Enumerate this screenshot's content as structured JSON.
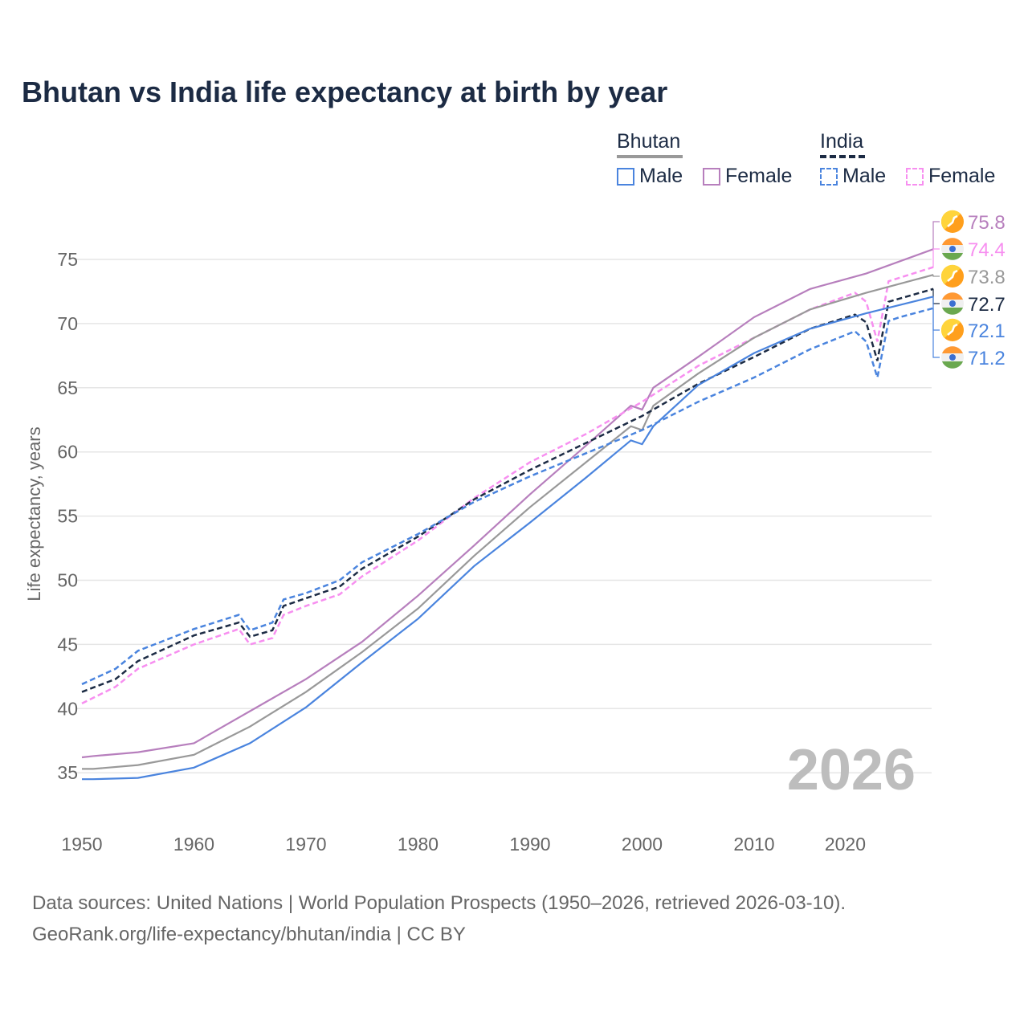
{
  "title": "Bhutan vs India life expectancy at birth by year",
  "legend": {
    "groups": [
      {
        "name": "Bhutan",
        "items": [
          "Male",
          "Female"
        ]
      },
      {
        "name": "India",
        "items": [
          "Male",
          "Female"
        ]
      }
    ]
  },
  "year_label": "2026",
  "footer": {
    "line1": "Data sources: United Nations | World Population Prospects (1950–2026, retrieved 2026-03-10).",
    "line2": "GeoRank.org/life-expectancy/bhutan/india | CC BY"
  },
  "chart_data": {
    "type": "line",
    "title": "Bhutan vs India life expectancy at birth by year",
    "xlabel": "",
    "ylabel": "Life expectancy, years",
    "xlim": [
      1950,
      2026
    ],
    "ylim": [
      33,
      78
    ],
    "xticks": [
      1950,
      1960,
      1970,
      1980,
      1990,
      2000,
      2010,
      2020
    ],
    "yticks": [
      35,
      40,
      45,
      50,
      55,
      60,
      65,
      70,
      75
    ],
    "grid": true,
    "series": [
      {
        "name": "Bhutan Female",
        "color": "#b77fbd",
        "dash": false,
        "end_label": "75.8",
        "flag": "bhutan",
        "x": [
          1950,
          1951,
          1955,
          1960,
          1965,
          1970,
          1975,
          1980,
          1985,
          1990,
          1995,
          1999,
          2000,
          2001,
          2005,
          2010,
          2015,
          2020,
          2026
        ],
        "y": [
          36.2,
          36.3,
          36.6,
          37.3,
          39.8,
          42.3,
          45.2,
          48.8,
          52.7,
          56.7,
          60.5,
          63.6,
          63.3,
          65.0,
          67.4,
          70.5,
          72.7,
          73.9,
          75.8
        ]
      },
      {
        "name": "India Female",
        "color": "#f78ff0",
        "dash": true,
        "end_label": "74.4",
        "flag": "india",
        "x": [
          1950,
          1953,
          1955,
          1960,
          1964,
          1965,
          1967,
          1968,
          1970,
          1973,
          1975,
          1980,
          1985,
          1990,
          1995,
          2000,
          2005,
          2010,
          2015,
          2019,
          2020,
          2021,
          2022,
          2026
        ],
        "y": [
          40.4,
          41.7,
          43.1,
          45.0,
          46.2,
          45.0,
          45.5,
          47.3,
          48.0,
          48.9,
          50.3,
          53.1,
          56.4,
          59.2,
          61.4,
          63.9,
          66.7,
          68.9,
          71.1,
          72.4,
          71.7,
          68.6,
          73.3,
          74.4
        ]
      },
      {
        "name": "Bhutan",
        "color": "#999999",
        "dash": false,
        "end_label": "73.8",
        "flag": "bhutan",
        "x": [
          1950,
          1951,
          1955,
          1960,
          1965,
          1970,
          1975,
          1980,
          1985,
          1990,
          1995,
          1999,
          2000,
          2001,
          2005,
          2010,
          2015,
          2020,
          2026
        ],
        "y": [
          35.3,
          35.3,
          35.6,
          36.4,
          38.6,
          41.3,
          44.4,
          47.8,
          51.9,
          55.7,
          59.2,
          62.0,
          61.7,
          63.6,
          66.1,
          68.9,
          71.1,
          72.4,
          73.8
        ]
      },
      {
        "name": "India",
        "color": "#1c2b44",
        "dash": true,
        "end_label": "72.7",
        "flag": "india",
        "x": [
          1950,
          1953,
          1955,
          1960,
          1964,
          1965,
          1967,
          1968,
          1970,
          1973,
          1975,
          1980,
          1985,
          1990,
          1995,
          2000,
          2005,
          2010,
          2015,
          2019,
          2020,
          2021,
          2022,
          2026
        ],
        "y": [
          41.3,
          42.3,
          43.7,
          45.7,
          46.7,
          45.6,
          46.1,
          48.0,
          48.6,
          49.5,
          50.9,
          53.4,
          56.3,
          58.6,
          60.7,
          62.8,
          65.3,
          67.4,
          69.6,
          70.7,
          70.1,
          67.1,
          71.7,
          72.7
        ]
      },
      {
        "name": "Bhutan Male",
        "color": "#4a84de",
        "dash": false,
        "end_label": "72.1",
        "flag": "bhutan",
        "x": [
          1950,
          1951,
          1955,
          1960,
          1965,
          1970,
          1975,
          1980,
          1985,
          1990,
          1995,
          1999,
          2000,
          2001,
          2005,
          2010,
          2015,
          2020,
          2026
        ],
        "y": [
          34.5,
          34.5,
          34.6,
          35.4,
          37.3,
          40.1,
          43.6,
          47.0,
          51.1,
          54.5,
          58.0,
          60.9,
          60.6,
          62.0,
          65.2,
          67.7,
          69.6,
          70.8,
          72.1
        ]
      },
      {
        "name": "India Male",
        "color": "#4a84de",
        "dash": true,
        "end_label": "71.2",
        "flag": "india",
        "x": [
          1950,
          1953,
          1955,
          1960,
          1964,
          1965,
          1967,
          1968,
          1970,
          1973,
          1975,
          1980,
          1985,
          1990,
          1995,
          2000,
          2005,
          2010,
          2015,
          2019,
          2020,
          2021,
          2022,
          2023,
          2026
        ],
        "y": [
          41.9,
          43.1,
          44.5,
          46.2,
          47.3,
          46.1,
          46.7,
          48.5,
          49.0,
          50.0,
          51.4,
          53.6,
          56.1,
          58.1,
          59.9,
          61.7,
          63.9,
          65.8,
          68.0,
          69.4,
          68.6,
          65.8,
          70.2,
          70.5,
          71.2
        ]
      }
    ]
  }
}
